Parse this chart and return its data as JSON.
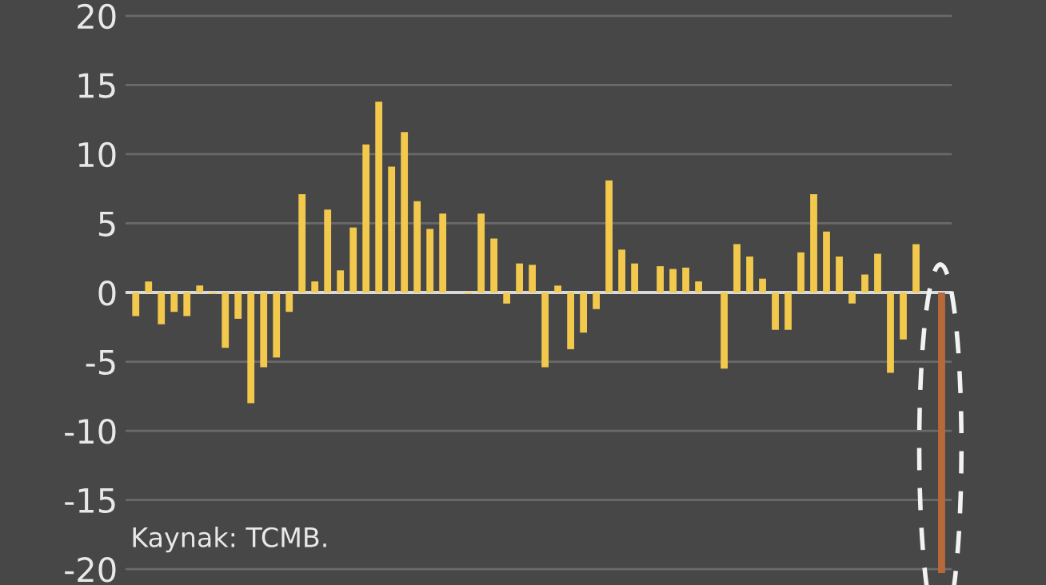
{
  "chart_data": {
    "type": "bar",
    "categories": [
      null,
      null,
      null,
      null,
      null,
      null,
      null,
      null,
      null,
      null,
      null,
      null,
      null,
      null,
      null,
      null,
      null,
      null,
      null,
      null,
      null,
      null,
      null,
      null,
      null,
      null,
      null,
      null,
      null,
      null,
      null,
      null,
      null,
      null,
      null,
      null,
      null,
      null,
      null,
      null,
      null,
      null,
      null,
      null,
      null,
      null,
      null,
      null,
      null,
      null,
      null,
      null,
      null,
      null,
      null,
      null,
      null,
      null,
      null,
      null,
      null,
      null,
      null,
      null
    ],
    "values": [
      -1.7,
      0.8,
      -2.3,
      -1.4,
      -1.7,
      0.5,
      -0.1,
      -4.0,
      -1.9,
      -8.0,
      -5.4,
      -4.7,
      -1.4,
      7.1,
      0.8,
      6.0,
      1.6,
      4.7,
      10.7,
      13.8,
      9.1,
      11.6,
      6.6,
      4.6,
      5.7,
      0,
      -0.1,
      5.7,
      3.9,
      -0.8,
      2.1,
      2.0,
      -5.4,
      0.5,
      -4.1,
      -2.9,
      -1.2,
      8.1,
      3.1,
      2.1,
      0,
      1.9,
      1.7,
      1.8,
      0.8,
      0,
      -5.5,
      3.5,
      2.6,
      1.0,
      -2.7,
      -2.7,
      2.9,
      7.1,
      4.4,
      2.6,
      -0.8,
      1.3,
      2.8,
      -5.8,
      -3.4,
      3.5,
      0,
      -20.3
    ],
    "colors": [
      "#f2c94c",
      "#f2c94c",
      "#f2c94c",
      "#f2c94c",
      "#f2c94c",
      "#f2c94c",
      "#f2c94c",
      "#f2c94c",
      "#f2c94c",
      "#f2c94c",
      "#f2c94c",
      "#f2c94c",
      "#f2c94c",
      "#f2c94c",
      "#f2c94c",
      "#f2c94c",
      "#f2c94c",
      "#f2c94c",
      "#f2c94c",
      "#f2c94c",
      "#f2c94c",
      "#f2c94c",
      "#f2c94c",
      "#f2c94c",
      "#f2c94c",
      "#f2c94c",
      "#f2c94c",
      "#f2c94c",
      "#f2c94c",
      "#f2c94c",
      "#f2c94c",
      "#f2c94c",
      "#f2c94c",
      "#f2c94c",
      "#f2c94c",
      "#f2c94c",
      "#f2c94c",
      "#f2c94c",
      "#f2c94c",
      "#f2c94c",
      "#f2c94c",
      "#f2c94c",
      "#f2c94c",
      "#f2c94c",
      "#f2c94c",
      "#f2c94c",
      "#f2c94c",
      "#f2c94c",
      "#f2c94c",
      "#f2c94c",
      "#f2c94c",
      "#f2c94c",
      "#f2c94c",
      "#f2c94c",
      "#f2c94c",
      "#f2c94c",
      "#f2c94c",
      "#f2c94c",
      "#f2c94c",
      "#f2c94c",
      "#f2c94c",
      "#f2c94c",
      "#f2c94c",
      "#b8693a"
    ],
    "ylim": [
      -20.3,
      20.3
    ],
    "yticks": [
      -20,
      -15,
      -10,
      -5,
      0,
      5,
      10,
      15,
      20
    ],
    "grid": "y",
    "ref_lines": [
      {
        "axis": "y",
        "value": 0,
        "color": "#d9d9d9"
      }
    ],
    "annotations": [
      "Kaynak: TCMB."
    ]
  }
}
